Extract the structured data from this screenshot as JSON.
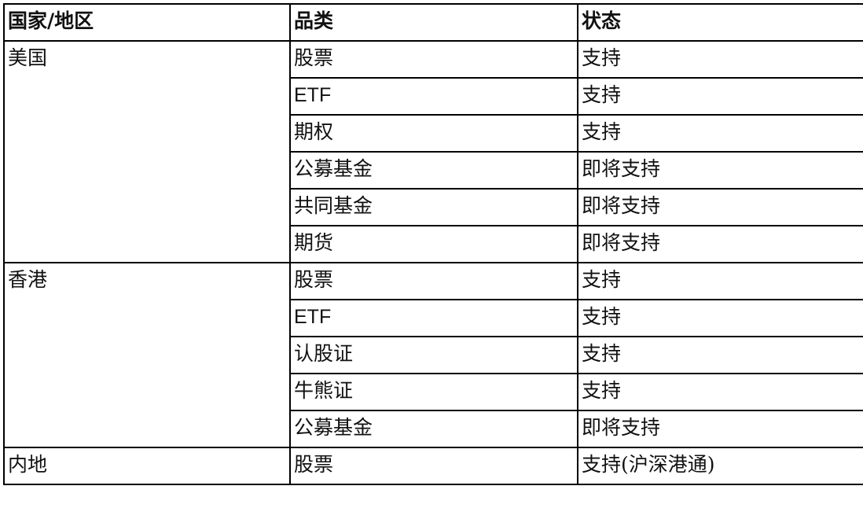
{
  "headers": [
    "国家/地区",
    "品类",
    "状态"
  ],
  "groups": [
    {
      "region": "美国",
      "rows": [
        {
          "category": "股票",
          "status": "支持"
        },
        {
          "category": "ETF",
          "status": "支持"
        },
        {
          "category": "期权",
          "status": "支持"
        },
        {
          "category": "公募基金",
          "status": "即将支持"
        },
        {
          "category": "共同基金",
          "status": "即将支持"
        },
        {
          "category": "期货",
          "status": "即将支持"
        }
      ]
    },
    {
      "region": "香港",
      "rows": [
        {
          "category": "股票",
          "status": "支持"
        },
        {
          "category": "ETF",
          "status": "支持"
        },
        {
          "category": "认股证",
          "status": "支持"
        },
        {
          "category": "牛熊证",
          "status": "支持"
        },
        {
          "category": "公募基金",
          "status": "即将支持"
        }
      ]
    },
    {
      "region": "内地",
      "rows": [
        {
          "category": "股票",
          "status": "支持(沪深港通)"
        }
      ]
    }
  ]
}
